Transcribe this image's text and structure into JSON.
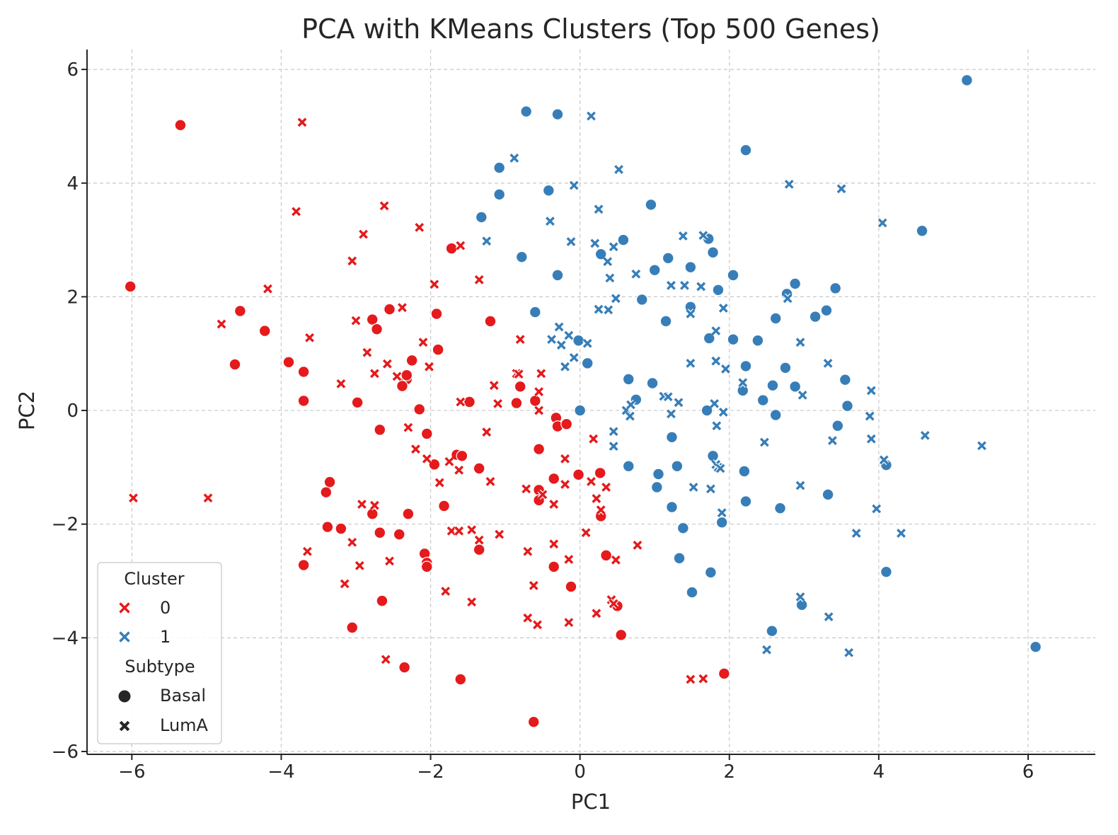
{
  "chart_data": {
    "type": "scatter",
    "title": "PCA with KMeans Clusters (Top 500 Genes)",
    "xlabel": "PC1",
    "ylabel": "PC2",
    "xlim": [
      -6.6,
      6.9
    ],
    "ylim": [
      -6.05,
      6.35
    ],
    "xticks": [
      -6,
      -4,
      -2,
      0,
      2,
      4,
      6
    ],
    "yticks": [
      -6,
      -4,
      -2,
      0,
      2,
      4,
      6
    ],
    "xtick_labels": [
      "−6",
      "−4",
      "−2",
      "0",
      "2",
      "4",
      "6"
    ],
    "ytick_labels": [
      "−6",
      "−4",
      "−2",
      "0",
      "2",
      "4",
      "6"
    ],
    "grid": true,
    "legend": {
      "placement": "lower-left",
      "hue_title": "Cluster",
      "hue_entries": [
        {
          "label": "0",
          "color": "#e41a1c"
        },
        {
          "label": "1",
          "color": "#377eb8"
        }
      ],
      "style_title": "Subtype",
      "style_entries": [
        {
          "label": "Basal",
          "marker": "circle"
        },
        {
          "label": "LumA",
          "marker": "x"
        }
      ]
    },
    "colors": {
      "0": "#e41a1c",
      "1": "#377eb8"
    },
    "series": [
      {
        "cluster": "0",
        "subtype": "Basal",
        "points": [
          [
            -5.35,
            5.02
          ],
          [
            -6.02,
            2.18
          ],
          [
            -4.55,
            1.75
          ],
          [
            -4.22,
            1.4
          ],
          [
            -4.62,
            0.81
          ],
          [
            -3.9,
            0.85
          ],
          [
            -3.7,
            0.68
          ],
          [
            -3.7,
            0.17
          ],
          [
            -2.78,
            1.6
          ],
          [
            -2.72,
            1.43
          ],
          [
            -2.55,
            1.78
          ],
          [
            -2.25,
            0.88
          ],
          [
            -2.32,
            0.55
          ],
          [
            -2.32,
            0.62
          ],
          [
            -2.38,
            0.43
          ],
          [
            -1.92,
            1.7
          ],
          [
            -1.9,
            1.07
          ],
          [
            -1.72,
            2.85
          ],
          [
            -1.2,
            1.57
          ],
          [
            -2.98,
            0.14
          ],
          [
            -2.15,
            0.02
          ],
          [
            -2.68,
            -0.34
          ],
          [
            -2.05,
            -0.41
          ],
          [
            -1.48,
            0.15
          ],
          [
            -0.85,
            0.13
          ],
          [
            -0.8,
            0.42
          ],
          [
            -0.6,
            0.17
          ],
          [
            -1.95,
            -0.95
          ],
          [
            -1.65,
            -0.78
          ],
          [
            -1.58,
            -0.8
          ],
          [
            -1.35,
            -1.02
          ],
          [
            -3.35,
            -1.26
          ],
          [
            -3.4,
            -1.44
          ],
          [
            -3.38,
            -2.05
          ],
          [
            -3.2,
            -2.08
          ],
          [
            -2.78,
            -1.82
          ],
          [
            -2.68,
            -2.15
          ],
          [
            -2.42,
            -2.18
          ],
          [
            -2.3,
            -1.82
          ],
          [
            -1.82,
            -1.68
          ],
          [
            -2.08,
            -2.52
          ],
          [
            -2.05,
            -2.68
          ],
          [
            -2.05,
            -2.75
          ],
          [
            -1.35,
            -2.45
          ],
          [
            -2.65,
            -3.35
          ],
          [
            -3.05,
            -3.82
          ],
          [
            -2.35,
            -4.52
          ],
          [
            -1.6,
            -4.73
          ],
          [
            -3.7,
            -2.72
          ],
          [
            -0.55,
            -0.68
          ],
          [
            -0.55,
            -1.4
          ],
          [
            -0.55,
            -1.58
          ],
          [
            -0.32,
            -0.13
          ],
          [
            -0.3,
            -0.28
          ],
          [
            -0.18,
            -0.24
          ],
          [
            -0.35,
            -1.2
          ],
          [
            -0.02,
            -1.13
          ],
          [
            0.27,
            -1.1
          ],
          [
            0.28,
            -1.86
          ],
          [
            0.35,
            -2.55
          ],
          [
            -0.35,
            -2.75
          ],
          [
            -0.12,
            -3.1
          ],
          [
            0.5,
            -3.44
          ],
          [
            0.55,
            -3.95
          ],
          [
            -0.62,
            -5.48
          ],
          [
            1.93,
            -4.63
          ]
        ]
      },
      {
        "cluster": "0",
        "subtype": "LumA",
        "points": [
          [
            -3.72,
            5.07
          ],
          [
            -3.8,
            3.5
          ],
          [
            -2.62,
            3.6
          ],
          [
            -2.15,
            3.22
          ],
          [
            -2.9,
            3.1
          ],
          [
            -3.05,
            2.63
          ],
          [
            -4.18,
            2.14
          ],
          [
            -1.95,
            2.22
          ],
          [
            -4.8,
            1.52
          ],
          [
            -3.62,
            1.28
          ],
          [
            -3.0,
            1.58
          ],
          [
            -2.85,
            1.02
          ],
          [
            -2.75,
            0.65
          ],
          [
            -2.58,
            0.82
          ],
          [
            -2.45,
            0.6
          ],
          [
            -2.38,
            1.81
          ],
          [
            -2.1,
            1.2
          ],
          [
            -2.02,
            0.77
          ],
          [
            -1.6,
            2.9
          ],
          [
            -1.35,
            2.3
          ],
          [
            -1.15,
            0.44
          ],
          [
            -1.1,
            0.12
          ],
          [
            -0.8,
            1.25
          ],
          [
            -0.85,
            0.65
          ],
          [
            -0.82,
            0.64
          ],
          [
            -3.2,
            0.47
          ],
          [
            -1.6,
            0.15
          ],
          [
            -0.52,
            0.65
          ],
          [
            -0.55,
            0.33
          ],
          [
            -0.55,
            0.0
          ],
          [
            -2.3,
            -0.3
          ],
          [
            -2.2,
            -0.68
          ],
          [
            -2.05,
            -0.85
          ],
          [
            -1.88,
            -1.27
          ],
          [
            -1.75,
            -0.9
          ],
          [
            -1.62,
            -1.05
          ],
          [
            -1.25,
            -0.38
          ],
          [
            -1.2,
            -1.25
          ],
          [
            -0.72,
            -1.38
          ],
          [
            -0.5,
            -1.48
          ],
          [
            -0.35,
            -1.65
          ],
          [
            -0.2,
            -1.3
          ],
          [
            -0.2,
            -0.85
          ],
          [
            0.18,
            -0.5
          ],
          [
            0.15,
            -1.25
          ],
          [
            0.35,
            -1.35
          ],
          [
            0.22,
            -1.55
          ],
          [
            0.28,
            -1.75
          ],
          [
            -5.98,
            -1.54
          ],
          [
            -4.98,
            -1.54
          ],
          [
            -2.92,
            -1.65
          ],
          [
            -2.75,
            -1.67
          ],
          [
            -3.05,
            -2.32
          ],
          [
            -2.95,
            -2.73
          ],
          [
            -2.55,
            -2.65
          ],
          [
            -3.15,
            -3.05
          ],
          [
            -1.72,
            -2.12
          ],
          [
            -1.62,
            -2.12
          ],
          [
            -1.45,
            -2.1
          ],
          [
            -1.35,
            -2.28
          ],
          [
            -1.08,
            -2.18
          ],
          [
            -0.7,
            -2.48
          ],
          [
            -0.35,
            -2.35
          ],
          [
            -0.15,
            -2.62
          ],
          [
            0.08,
            -2.15
          ],
          [
            0.48,
            -2.63
          ],
          [
            -1.8,
            -3.18
          ],
          [
            -1.45,
            -3.37
          ],
          [
            -0.62,
            -3.08
          ],
          [
            -0.7,
            -3.65
          ],
          [
            -0.57,
            -3.77
          ],
          [
            -0.15,
            -3.73
          ],
          [
            0.42,
            -3.33
          ],
          [
            0.45,
            -3.4
          ],
          [
            0.22,
            -3.57
          ],
          [
            0.77,
            -2.37
          ],
          [
            -2.6,
            -4.38
          ],
          [
            -3.65,
            -2.48
          ],
          [
            1.48,
            -4.73
          ],
          [
            1.65,
            -4.72
          ]
        ]
      },
      {
        "cluster": "1",
        "subtype": "Basal",
        "points": [
          [
            -0.72,
            5.26
          ],
          [
            -0.3,
            5.21
          ],
          [
            2.22,
            4.58
          ],
          [
            5.18,
            5.81
          ],
          [
            -1.08,
            4.27
          ],
          [
            -1.08,
            3.8
          ],
          [
            -0.42,
            3.87
          ],
          [
            -1.32,
            3.4
          ],
          [
            -0.3,
            2.38
          ],
          [
            -0.78,
            2.7
          ],
          [
            0.28,
            2.75
          ],
          [
            0.58,
            3.0
          ],
          [
            0.95,
            3.62
          ],
          [
            1.0,
            2.47
          ],
          [
            1.18,
            2.68
          ],
          [
            1.48,
            2.52
          ],
          [
            1.78,
            2.78
          ],
          [
            1.72,
            3.02
          ],
          [
            1.85,
            2.12
          ],
          [
            2.05,
            2.38
          ],
          [
            2.77,
            2.05
          ],
          [
            2.88,
            2.23
          ],
          [
            3.42,
            2.15
          ],
          [
            4.58,
            3.16
          ],
          [
            -0.6,
            1.73
          ],
          [
            0.83,
            1.95
          ],
          [
            1.15,
            1.57
          ],
          [
            1.48,
            1.82
          ],
          [
            1.73,
            1.27
          ],
          [
            2.05,
            1.25
          ],
          [
            2.38,
            1.23
          ],
          [
            2.62,
            1.62
          ],
          [
            3.15,
            1.65
          ],
          [
            3.3,
            1.76
          ],
          [
            -0.02,
            1.23
          ],
          [
            0.1,
            0.83
          ],
          [
            0.65,
            0.55
          ],
          [
            0.97,
            0.48
          ],
          [
            2.22,
            0.78
          ],
          [
            2.75,
            0.75
          ],
          [
            2.18,
            0.35
          ],
          [
            2.45,
            0.18
          ],
          [
            2.58,
            0.44
          ],
          [
            2.88,
            0.42
          ],
          [
            2.62,
            -0.08
          ],
          [
            3.55,
            0.54
          ],
          [
            3.58,
            0.08
          ],
          [
            3.45,
            -0.27
          ],
          [
            0.0,
            0.0
          ],
          [
            1.7,
            0.0
          ],
          [
            0.75,
            0.19
          ],
          [
            1.23,
            -0.47
          ],
          [
            1.78,
            -0.8
          ],
          [
            4.1,
            -0.96
          ],
          [
            1.05,
            -1.12
          ],
          [
            1.3,
            -0.98
          ],
          [
            0.65,
            -0.98
          ],
          [
            1.03,
            -1.35
          ],
          [
            2.2,
            -1.07
          ],
          [
            1.23,
            -1.7
          ],
          [
            2.22,
            -1.6
          ],
          [
            2.68,
            -1.72
          ],
          [
            3.32,
            -1.48
          ],
          [
            1.38,
            -2.07
          ],
          [
            1.9,
            -1.97
          ],
          [
            1.33,
            -2.6
          ],
          [
            1.75,
            -2.85
          ],
          [
            1.5,
            -3.2
          ],
          [
            2.97,
            -3.42
          ],
          [
            4.1,
            -2.84
          ],
          [
            2.57,
            -3.88
          ],
          [
            6.1,
            -4.16
          ]
        ]
      },
      {
        "cluster": "1",
        "subtype": "LumA",
        "points": [
          [
            0.15,
            5.18
          ],
          [
            -0.88,
            4.44
          ],
          [
            0.52,
            4.24
          ],
          [
            -0.08,
            3.96
          ],
          [
            2.8,
            3.98
          ],
          [
            3.5,
            3.9
          ],
          [
            4.05,
            3.3
          ],
          [
            0.25,
            3.54
          ],
          [
            -0.4,
            3.33
          ],
          [
            -1.25,
            2.98
          ],
          [
            -0.12,
            2.97
          ],
          [
            0.2,
            2.94
          ],
          [
            0.45,
            2.88
          ],
          [
            0.37,
            2.62
          ],
          [
            1.38,
            3.07
          ],
          [
            1.65,
            3.08
          ],
          [
            0.4,
            2.33
          ],
          [
            0.48,
            1.97
          ],
          [
            0.25,
            1.78
          ],
          [
            0.38,
            1.77
          ],
          [
            0.75,
            2.4
          ],
          [
            1.22,
            2.2
          ],
          [
            1.4,
            2.2
          ],
          [
            1.62,
            2.18
          ],
          [
            1.48,
            1.7
          ],
          [
            1.92,
            1.8
          ],
          [
            2.78,
            1.97
          ],
          [
            -0.28,
            1.47
          ],
          [
            -0.38,
            1.25
          ],
          [
            -0.25,
            1.15
          ],
          [
            -0.15,
            1.32
          ],
          [
            0.1,
            1.18
          ],
          [
            -0.08,
            0.93
          ],
          [
            -0.2,
            0.77
          ],
          [
            1.48,
            0.83
          ],
          [
            1.82,
            1.4
          ],
          [
            1.95,
            0.73
          ],
          [
            1.82,
            0.87
          ],
          [
            2.18,
            0.49
          ],
          [
            2.95,
            1.2
          ],
          [
            3.32,
            0.83
          ],
          [
            1.12,
            0.25
          ],
          [
            1.18,
            0.24
          ],
          [
            1.22,
            -0.06
          ],
          [
            1.32,
            0.14
          ],
          [
            0.62,
            0.0
          ],
          [
            0.68,
            0.1
          ],
          [
            0.67,
            -0.1
          ],
          [
            1.8,
            0.12
          ],
          [
            1.92,
            -0.03
          ],
          [
            2.98,
            0.27
          ],
          [
            3.88,
            -0.1
          ],
          [
            3.9,
            0.35
          ],
          [
            0.45,
            -0.37
          ],
          [
            0.45,
            -0.63
          ],
          [
            1.83,
            -0.27
          ],
          [
            2.47,
            -0.56
          ],
          [
            3.38,
            -0.53
          ],
          [
            3.9,
            -0.5
          ],
          [
            4.62,
            -0.44
          ],
          [
            5.38,
            -0.62
          ],
          [
            4.07,
            -0.87
          ],
          [
            1.82,
            -0.95
          ],
          [
            1.85,
            -1.0
          ],
          [
            1.88,
            -1.02
          ],
          [
            1.52,
            -1.35
          ],
          [
            1.75,
            -1.38
          ],
          [
            2.95,
            -1.32
          ],
          [
            1.9,
            -1.8
          ],
          [
            3.97,
            -1.73
          ],
          [
            3.7,
            -2.16
          ],
          [
            4.3,
            -2.16
          ],
          [
            2.95,
            -3.28
          ],
          [
            3.33,
            -3.63
          ],
          [
            2.5,
            -4.21
          ],
          [
            3.6,
            -4.26
          ]
        ]
      }
    ]
  }
}
